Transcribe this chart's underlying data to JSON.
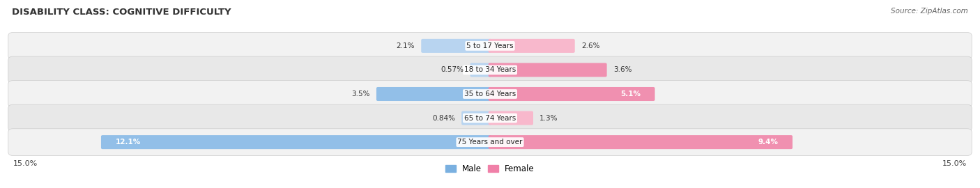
{
  "title": "DISABILITY CLASS: COGNITIVE DIFFICULTY",
  "source": "Source: ZipAtlas.com",
  "categories": [
    "5 to 17 Years",
    "18 to 34 Years",
    "35 to 64 Years",
    "65 to 74 Years",
    "75 Years and over"
  ],
  "male_values": [
    2.1,
    0.57,
    3.5,
    0.84,
    12.1
  ],
  "female_values": [
    2.6,
    3.6,
    5.1,
    1.3,
    9.4
  ],
  "male_labels": [
    "2.1%",
    "0.57%",
    "3.5%",
    "0.84%",
    "12.1%"
  ],
  "female_labels": [
    "2.6%",
    "3.6%",
    "5.1%",
    "1.3%",
    "9.4%"
  ],
  "max_val": 15.0,
  "male_color": "#92bfe8",
  "female_color": "#f090b0",
  "male_color_light": "#b8d4f0",
  "female_color_light": "#f8b8cc",
  "row_bg_odd": "#f2f2f2",
  "row_bg_even": "#e8e8e8",
  "legend_male_color": "#7ab0e0",
  "legend_female_color": "#f080a8",
  "axis_label_left": "15.0%",
  "axis_label_right": "15.0%"
}
